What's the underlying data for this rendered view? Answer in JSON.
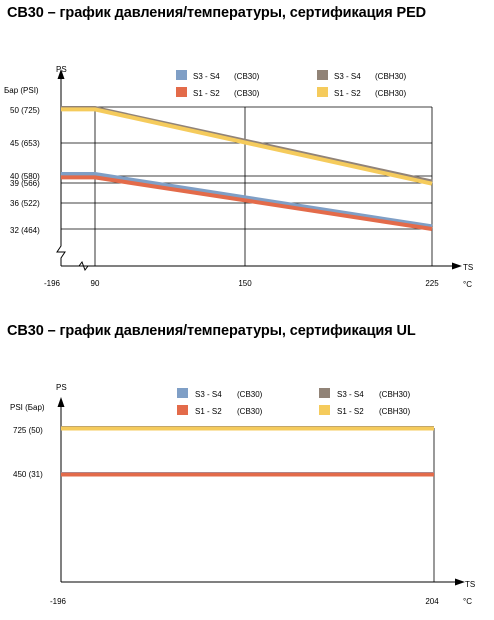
{
  "colors": {
    "s3s4_cb30": "#7f9fc6",
    "s1s2_cb30": "#e36b4a",
    "s3s4_cbh30": "#918377",
    "s1s2_cbh30": "#f5cb5c"
  },
  "chart_data": [
    {
      "type": "line",
      "title": "CB30 – график давления/температуры, сертификация PED",
      "ylabel": "PS",
      "yunits": "Бар  (PSI)",
      "xlabel": "TS",
      "xunit": "°C",
      "x_ticks": [
        "-196",
        "90",
        "150",
        "225"
      ],
      "y_ticks": [
        "50  (725)",
        "45  (653)",
        "40  (580)",
        "39  (566)",
        "36  (522)",
        "32  (464)"
      ],
      "grid": true,
      "legend_position": "top",
      "series": [
        {
          "name": "S3 - S4   (CBH30)",
          "legend": [
            "S3 - S4",
            "(CBH30)"
          ],
          "color": "#918377",
          "points": [
            [
              -196,
              50
            ],
            [
              90,
              50
            ],
            [
              225,
              39.2
            ]
          ]
        },
        {
          "name": "S1 - S2   (CBH30)",
          "legend": [
            "S1 - S2",
            "(CBH30)"
          ],
          "color": "#f5cb5c",
          "points": [
            [
              -196,
              49.8
            ],
            [
              90,
              49.8
            ],
            [
              225,
              38.9
            ]
          ]
        },
        {
          "name": "S3 - S4   (CB30)",
          "legend": [
            "S3 - S4",
            "(CB30)"
          ],
          "color": "#7f9fc6",
          "points": [
            [
              -196,
              40.3
            ],
            [
              90,
              40.3
            ],
            [
              225,
              32.4
            ]
          ]
        },
        {
          "name": "S1 - S2   (CB30)",
          "legend": [
            "S1 - S2",
            "(CB30)"
          ],
          "color": "#e36b4a",
          "points": [
            [
              -196,
              39.8
            ],
            [
              90,
              39.8
            ],
            [
              225,
              32
            ]
          ]
        }
      ]
    },
    {
      "type": "line",
      "title": "CB30 – график давления/температуры, сертификация UL",
      "ylabel": "PS",
      "yunits": "PSI (Бар)",
      "xlabel": "TS",
      "xunit": "°C",
      "x_ticks": [
        "-196",
        "204"
      ],
      "y_ticks": [
        "725 (50)",
        "450 (31)"
      ],
      "grid": false,
      "legend_position": "top",
      "series": [
        {
          "name": "S3 - S4   (CBH30)",
          "legend": [
            "S3 - S4",
            "(CBH30)"
          ],
          "color": "#918377",
          "points": [
            [
              -196,
              725
            ],
            [
              204,
              725
            ]
          ]
        },
        {
          "name": "S1 - S2   (CBH30)",
          "legend": [
            "S1 - S2",
            "(CBH30)"
          ],
          "color": "#f5cb5c",
          "points": [
            [
              -196,
              722
            ],
            [
              204,
              722
            ]
          ]
        },
        {
          "name": "S3 - S4   (CB30)",
          "legend": [
            "S3 - S4",
            "(CB30)"
          ],
          "color": "#7f9fc6",
          "points": [
            [
              -196,
              450
            ],
            [
              204,
              450
            ]
          ]
        },
        {
          "name": "S1 - S2   (CB30)",
          "legend": [
            "S1 - S2",
            "(CB30)"
          ],
          "color": "#e36b4a",
          "points": [
            [
              -196,
              447
            ],
            [
              204,
              447
            ]
          ]
        }
      ]
    }
  ]
}
